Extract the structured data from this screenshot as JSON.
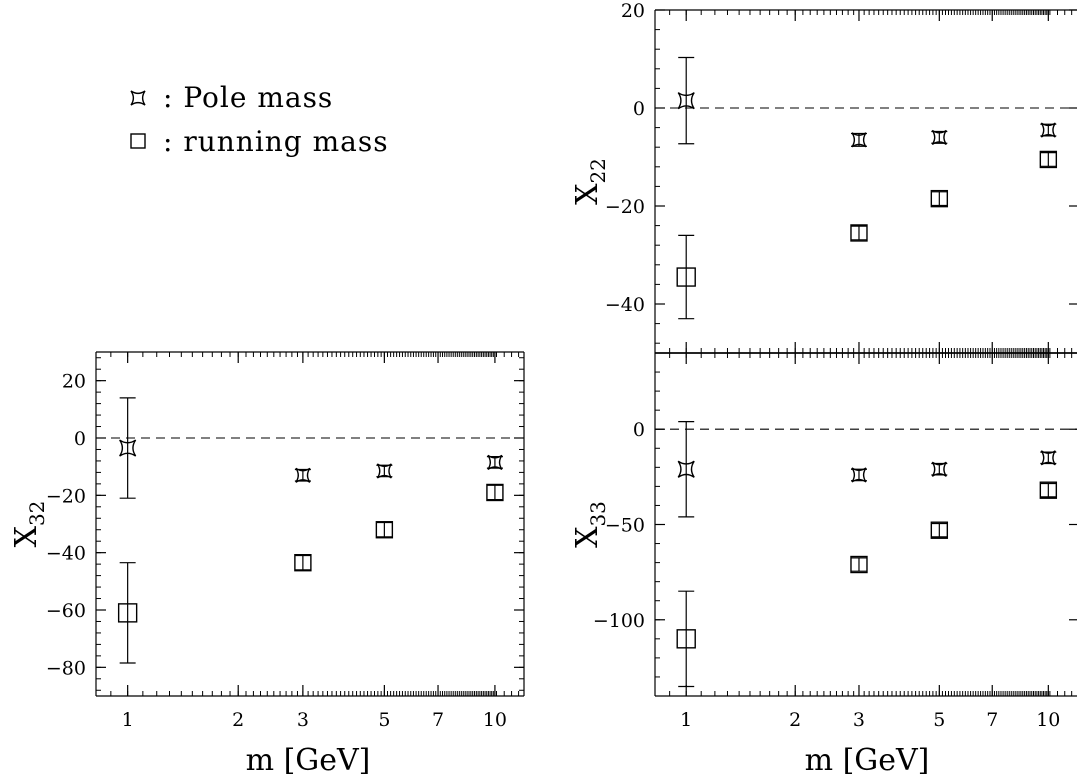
{
  "legend": {
    "pole_label": ": Pole mass",
    "running_label": ": running  mass"
  },
  "chart_data": [
    {
      "type": "scatter",
      "panel": "X22",
      "ylabel": "X",
      "ylabel_sub": "22",
      "xlabel": "",
      "x_scale": "log",
      "xlim": [
        0.82,
        12
      ],
      "ylim": [
        -50,
        20
      ],
      "x_ticks": [
        1,
        2,
        3,
        5,
        7,
        10
      ],
      "x_tick_labels": [],
      "y_ticks": [
        20,
        0,
        -20,
        -40
      ],
      "y_tick_labels": [
        "20",
        "0",
        "−20",
        "−40"
      ],
      "zero_line": "dashed",
      "series": [
        {
          "name": "Pole mass",
          "marker": "pole",
          "points": [
            {
              "x": 1,
              "y": 1.5,
              "err": 8.8
            },
            {
              "x": 3,
              "y": -6.5,
              "err": 1.3
            },
            {
              "x": 5,
              "y": -6,
              "err": 1.2
            },
            {
              "x": 10,
              "y": -4.5,
              "err": 1.2
            }
          ]
        },
        {
          "name": "running  mass",
          "marker": "running",
          "points": [
            {
              "x": 1,
              "y": -34.5,
              "err": 8.5
            },
            {
              "x": 3,
              "y": -25.5,
              "err": 1.4
            },
            {
              "x": 5,
              "y": -18.5,
              "err": 1.4
            },
            {
              "x": 10,
              "y": -10.5,
              "err": 1.4
            }
          ]
        }
      ]
    },
    {
      "type": "scatter",
      "panel": "X33",
      "ylabel": "X",
      "ylabel_sub": "33",
      "xlabel": "m  [GeV]",
      "x_scale": "log",
      "xlim": [
        0.82,
        12
      ],
      "ylim": [
        -140,
        40
      ],
      "x_ticks": [
        1,
        2,
        3,
        5,
        7,
        10
      ],
      "x_tick_labels": [
        "1",
        "2",
        "3",
        "5",
        "7",
        "10"
      ],
      "y_ticks": [
        0,
        -50,
        -100
      ],
      "y_tick_labels": [
        "0",
        "−50",
        "−100"
      ],
      "zero_line": "dashed",
      "series": [
        {
          "name": "Pole mass",
          "marker": "pole",
          "points": [
            {
              "x": 1,
              "y": -21,
              "err": 25
            },
            {
              "x": 3,
              "y": -24,
              "err": 3
            },
            {
              "x": 5,
              "y": -21,
              "err": 3
            },
            {
              "x": 10,
              "y": -15,
              "err": 3
            }
          ]
        },
        {
          "name": "running  mass",
          "marker": "running",
          "points": [
            {
              "x": 1,
              "y": -110,
              "err": 25
            },
            {
              "x": 3,
              "y": -71,
              "err": 3.5
            },
            {
              "x": 5,
              "y": -53,
              "err": 3.5
            },
            {
              "x": 10,
              "y": -32,
              "err": 3.5
            }
          ]
        }
      ]
    },
    {
      "type": "scatter",
      "panel": "X32",
      "ylabel": "X",
      "ylabel_sub": "32",
      "xlabel": "m  [GeV]",
      "x_scale": "log",
      "xlim": [
        0.82,
        12
      ],
      "ylim": [
        -90,
        30
      ],
      "x_ticks": [
        1,
        2,
        3,
        5,
        7,
        10
      ],
      "x_tick_labels": [
        "1",
        "2",
        "3",
        "5",
        "7",
        "10"
      ],
      "y_ticks": [
        20,
        0,
        -20,
        -40,
        -60,
        -80
      ],
      "y_tick_labels": [
        "20",
        "0",
        "−20",
        "−40",
        "−60",
        "−80"
      ],
      "zero_line": "dashed",
      "series": [
        {
          "name": "Pole mass",
          "marker": "pole",
          "points": [
            {
              "x": 1,
              "y": -3.5,
              "err": 17.5
            },
            {
              "x": 3,
              "y": -13,
              "err": 2
            },
            {
              "x": 5,
              "y": -11.5,
              "err": 2
            },
            {
              "x": 10,
              "y": -8.5,
              "err": 2
            }
          ]
        },
        {
          "name": "running  mass",
          "marker": "running",
          "points": [
            {
              "x": 1,
              "y": -61,
              "err": 17.5
            },
            {
              "x": 3,
              "y": -43.5,
              "err": 2.5
            },
            {
              "x": 5,
              "y": -32,
              "err": 2.5
            },
            {
              "x": 10,
              "y": -19,
              "err": 2.5
            }
          ]
        }
      ]
    }
  ]
}
